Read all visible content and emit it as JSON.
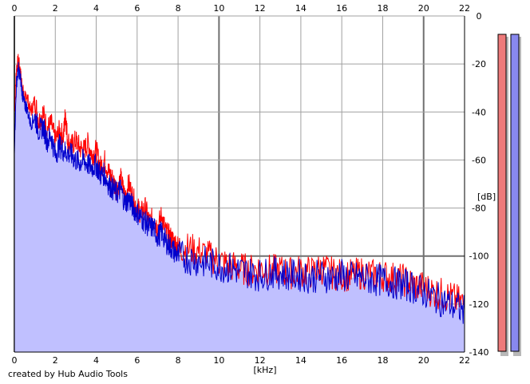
{
  "credit": "created by Hub Audio Tools",
  "chart_data": {
    "type": "area",
    "xlabel": "[kHz]",
    "ylabel": "[dB]",
    "xlim": [
      0,
      22
    ],
    "ylim": [
      -140,
      0
    ],
    "x_ticks": [
      0,
      2,
      4,
      6,
      8,
      10,
      12,
      14,
      16,
      18,
      20,
      22
    ],
    "y_ticks": [
      0,
      -20,
      -40,
      -60,
      -80,
      -100,
      -120,
      -140
    ],
    "grid": true,
    "series": [
      {
        "color": "#ff0000",
        "x": [
          0,
          0.1,
          0.2,
          0.3,
          0.4,
          0.5,
          0.6,
          0.8,
          1.0,
          1.2,
          1.4,
          1.6,
          1.8,
          2.0,
          2.2,
          2.4,
          2.5,
          2.6,
          2.8,
          3.0,
          3.2,
          3.4,
          3.6,
          3.8,
          4.0,
          4.2,
          4.4,
          4.6,
          4.8,
          5.0,
          5.2,
          5.4,
          5.6,
          5.8,
          6.0,
          6.2,
          6.4,
          6.6,
          6.8,
          7.0,
          7.2,
          7.4,
          7.6,
          7.8,
          8.0,
          8.5,
          9.0,
          9.5,
          10.0,
          10.5,
          11.0,
          11.5,
          12.0,
          12.5,
          13.0,
          13.5,
          14.0,
          14.5,
          15.0,
          15.5,
          16.0,
          16.5,
          17.0,
          17.5,
          18.0,
          18.5,
          19.0,
          19.5,
          20.0,
          20.5,
          21.0,
          21.5,
          22.0
        ],
        "y": [
          -40,
          -22,
          -18,
          -24,
          -30,
          -35,
          -33,
          -40,
          -35,
          -44,
          -40,
          -47,
          -45,
          -52,
          -48,
          -50,
          -40,
          -52,
          -54,
          -52,
          -55,
          -56,
          -53,
          -58,
          -56,
          -63,
          -60,
          -65,
          -68,
          -72,
          -68,
          -75,
          -70,
          -76,
          -80,
          -82,
          -80,
          -86,
          -84,
          -88,
          -83,
          -90,
          -92,
          -94,
          -96,
          -97,
          -98,
          -100,
          -102,
          -104,
          -105,
          -106,
          -105,
          -106,
          -106,
          -107,
          -106,
          -107,
          -105,
          -107,
          -108,
          -108,
          -107,
          -108,
          -108,
          -109,
          -110,
          -112,
          -113,
          -115,
          -116,
          -118,
          -120
        ]
      },
      {
        "color": "#0000cc",
        "x": [
          0,
          0.1,
          0.2,
          0.3,
          0.4,
          0.5,
          0.6,
          0.8,
          1.0,
          1.2,
          1.4,
          1.6,
          1.8,
          2.0,
          2.2,
          2.4,
          2.6,
          2.8,
          3.0,
          3.2,
          3.4,
          3.6,
          3.8,
          4.0,
          4.2,
          4.4,
          4.6,
          4.8,
          5.0,
          5.2,
          5.4,
          5.6,
          5.8,
          6.0,
          6.2,
          6.4,
          6.6,
          6.8,
          7.0,
          7.2,
          7.4,
          7.6,
          7.8,
          8.0,
          8.5,
          9.0,
          9.5,
          10.0,
          10.5,
          11.0,
          11.5,
          12.0,
          12.5,
          13.0,
          13.5,
          14.0,
          14.5,
          15.0,
          15.5,
          16.0,
          16.5,
          17.0,
          17.5,
          18.0,
          18.5,
          19.0,
          19.5,
          20.0,
          20.5,
          21.0,
          21.5,
          22.0
        ],
        "y": [
          -55,
          -28,
          -22,
          -26,
          -33,
          -37,
          -38,
          -45,
          -42,
          -48,
          -46,
          -52,
          -50,
          -58,
          -54,
          -56,
          -57,
          -58,
          -60,
          -61,
          -60,
          -62,
          -63,
          -62,
          -66,
          -66,
          -70,
          -72,
          -74,
          -72,
          -78,
          -76,
          -80,
          -82,
          -84,
          -86,
          -88,
          -88,
          -92,
          -90,
          -94,
          -96,
          -98,
          -100,
          -101,
          -102,
          -103,
          -104,
          -105,
          -106,
          -107,
          -108,
          -107,
          -107,
          -108,
          -108,
          -109,
          -108,
          -109,
          -108,
          -109,
          -109,
          -110,
          -110,
          -111,
          -112,
          -113,
          -115,
          -117,
          -119,
          -121,
          -123
        ]
      }
    ],
    "meters": [
      {
        "color": "#ee7a7a"
      },
      {
        "color": "#8888ee"
      }
    ],
    "colors": {
      "fill": "#c0c0ff",
      "grid": "#a0a0a0",
      "frame": "#000000"
    }
  }
}
